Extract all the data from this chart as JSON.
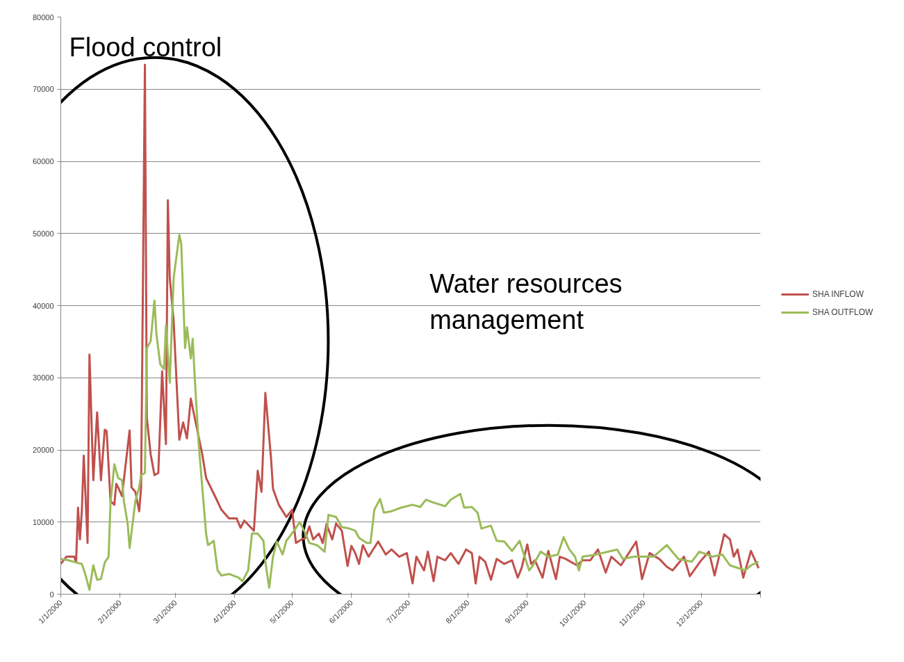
{
  "chart_data": {
    "type": "line",
    "xlim": [
      "2000-01-01",
      "2001-01-01"
    ],
    "xticks": [
      {
        "value": "2000-01-01",
        "label": "1/1/2000"
      },
      {
        "value": "2000-02-01",
        "label": "2/1/2000"
      },
      {
        "value": "2000-03-01",
        "label": "3/1/2000"
      },
      {
        "value": "2000-04-01",
        "label": "4/1/2000"
      },
      {
        "value": "2000-05-01",
        "label": "5/1/2000"
      },
      {
        "value": "2000-06-01",
        "label": "6/1/2000"
      },
      {
        "value": "2000-07-01",
        "label": "7/1/2000"
      },
      {
        "value": "2000-08-01",
        "label": "8/1/2000"
      },
      {
        "value": "2000-09-01",
        "label": "9/1/2000"
      },
      {
        "value": "2000-10-01",
        "label": "10/1/2000"
      },
      {
        "value": "2000-11-01",
        "label": "11/1/2000"
      },
      {
        "value": "2000-12-01",
        "label": "12/1/2000"
      },
      {
        "value": "2001-01-01",
        "label": null
      }
    ],
    "ylim": [
      0,
      80000
    ],
    "yticks": [
      0,
      10000,
      20000,
      30000,
      40000,
      50000,
      60000,
      70000,
      80000
    ],
    "grid": "y",
    "legend": "right",
    "annotations": [
      "Flood control",
      "Water resources\nmanagement"
    ],
    "series": [
      {
        "name": "SHA INFLOW",
        "color": "#c0504d",
        "x": [
          "2000-01-01",
          "2000-01-04",
          "2000-01-08",
          "2000-01-09",
          "2000-01-10",
          "2000-01-11",
          "2000-01-12",
          "2000-01-13",
          "2000-01-15",
          "2000-01-16",
          "2000-01-18",
          "2000-01-20",
          "2000-01-22",
          "2000-01-24",
          "2000-01-25",
          "2000-01-27",
          "2000-01-29",
          "2000-01-30",
          "2000-01-31",
          "2000-02-02",
          "2000-02-06",
          "2000-02-07",
          "2000-02-09",
          "2000-02-11",
          "2000-02-12",
          "2000-02-14",
          "2000-02-15",
          "2000-02-17",
          "2000-02-19",
          "2000-02-21",
          "2000-02-23",
          "2000-02-25",
          "2000-02-26",
          "2000-02-27",
          "2000-02-29",
          "2000-03-03",
          "2000-03-05",
          "2000-03-07",
          "2000-03-09",
          "2000-03-11",
          "2000-03-15",
          "2000-03-17",
          "2000-03-22",
          "2000-03-25",
          "2000-03-29",
          "2000-04-02",
          "2000-04-04",
          "2000-04-06",
          "2000-04-11",
          "2000-04-13",
          "2000-04-15",
          "2000-04-17",
          "2000-04-20",
          "2000-04-21",
          "2000-04-24",
          "2000-04-28",
          "2000-05-01",
          "2000-05-03",
          "2000-05-06",
          "2000-05-08",
          "2000-05-10",
          "2000-05-12",
          "2000-05-15",
          "2000-05-17",
          "2000-05-19",
          "2000-05-22",
          "2000-05-24",
          "2000-05-27",
          "2000-05-30",
          "2000-06-01",
          "2000-06-03",
          "2000-06-05",
          "2000-06-07",
          "2000-06-10",
          "2000-06-15",
          "2000-06-19",
          "2000-06-22",
          "2000-06-26",
          "2000-06-30",
          "2000-07-03",
          "2000-07-05",
          "2000-07-09",
          "2000-07-11",
          "2000-07-14",
          "2000-07-16",
          "2000-07-20",
          "2000-07-23",
          "2000-07-27",
          "2000-07-31",
          "2000-08-03",
          "2000-08-05",
          "2000-08-07",
          "2000-08-10",
          "2000-08-13",
          "2000-08-16",
          "2000-08-20",
          "2000-08-24",
          "2000-08-27",
          "2000-08-29",
          "2000-09-01",
          "2000-09-03",
          "2000-09-05",
          "2000-09-09",
          "2000-09-12",
          "2000-09-16",
          "2000-09-18",
          "2000-09-21",
          "2000-09-27",
          "2000-09-30",
          "2000-10-04",
          "2000-10-08",
          "2000-10-12",
          "2000-10-15",
          "2000-10-20",
          "2000-10-28",
          "2000-10-31",
          "2000-11-04",
          "2000-11-09",
          "2000-11-13",
          "2000-11-16",
          "2000-11-22",
          "2000-11-25",
          "2000-12-01",
          "2000-12-05",
          "2000-12-08",
          "2000-12-13",
          "2000-12-16",
          "2000-12-18",
          "2000-12-20",
          "2000-12-23",
          "2000-12-27",
          "2000-12-31"
        ],
        "values": [
          4200,
          5200,
          5200,
          4400,
          12000,
          7600,
          11500,
          19200,
          7100,
          33200,
          15800,
          25200,
          15800,
          22800,
          22600,
          12900,
          12400,
          15300,
          14800,
          13600,
          22700,
          14800,
          14200,
          11500,
          14800,
          73400,
          24500,
          19400,
          16500,
          16800,
          30900,
          20800,
          54600,
          43800,
          38000,
          21400,
          23800,
          21600,
          27100,
          24500,
          19400,
          16100,
          13400,
          11700,
          10500,
          10500,
          9200,
          10200,
          8800,
          17100,
          14200,
          27900,
          18700,
          14600,
          12400,
          10700,
          11700,
          7100,
          7600,
          7800,
          9400,
          7600,
          8400,
          7100,
          9700,
          7600,
          9800,
          8800,
          3900,
          6700,
          5700,
          4200,
          6800,
          5200,
          7300,
          5500,
          6200,
          5200,
          5700,
          1500,
          5200,
          3300,
          5900,
          1800,
          5200,
          4700,
          5700,
          4200,
          6200,
          5700,
          1500,
          5200,
          4500,
          2000,
          4900,
          4200,
          4700,
          2300,
          3600,
          6900,
          4200,
          4700,
          2300,
          6000,
          2100,
          5200,
          4900,
          4000,
          4700,
          4700,
          6200,
          3000,
          5200,
          4000,
          7300,
          2100,
          5700,
          4900,
          3800,
          3300,
          5200,
          2500,
          4700,
          5900,
          2600,
          8300,
          7600,
          5200,
          6200,
          2300,
          6000,
          3600
        ]
      },
      {
        "name": "SHA OUTFLOW",
        "color": "#9bbb59",
        "x": [
          "2000-01-01",
          "2000-01-05",
          "2000-01-09",
          "2000-01-12",
          "2000-01-14",
          "2000-01-16",
          "2000-01-18",
          "2000-01-20",
          "2000-01-22",
          "2000-01-24",
          "2000-01-26",
          "2000-01-27",
          "2000-01-29",
          "2000-01-31",
          "2000-02-02",
          "2000-02-03",
          "2000-02-05",
          "2000-02-06",
          "2000-02-09",
          "2000-02-11",
          "2000-02-12",
          "2000-02-14",
          "2000-02-15",
          "2000-02-17",
          "2000-02-19",
          "2000-02-20",
          "2000-02-22",
          "2000-02-24",
          "2000-02-25",
          "2000-02-27",
          "2000-02-29",
          "2000-03-03",
          "2000-03-04",
          "2000-03-06",
          "2000-03-07",
          "2000-03-09",
          "2000-03-10",
          "2000-03-11",
          "2000-03-13",
          "2000-03-15",
          "2000-03-17",
          "2000-03-18",
          "2000-03-21",
          "2000-03-23",
          "2000-03-25",
          "2000-03-29",
          "2000-04-03",
          "2000-04-05",
          "2000-04-08",
          "2000-04-10",
          "2000-04-13",
          "2000-04-16",
          "2000-04-17",
          "2000-04-19",
          "2000-04-21",
          "2000-04-23",
          "2000-04-26",
          "2000-04-28",
          "2000-05-02",
          "2000-05-05",
          "2000-05-08",
          "2000-05-10",
          "2000-05-14",
          "2000-05-18",
          "2000-05-20",
          "2000-05-24",
          "2000-05-27",
          "2000-05-31",
          "2000-06-03",
          "2000-06-05",
          "2000-06-09",
          "2000-06-11",
          "2000-06-13",
          "2000-06-16",
          "2000-06-18",
          "2000-06-22",
          "2000-06-27",
          "2000-07-03",
          "2000-07-07",
          "2000-07-10",
          "2000-07-14",
          "2000-07-20",
          "2000-07-23",
          "2000-07-28",
          "2000-07-30",
          "2000-08-03",
          "2000-08-06",
          "2000-08-08",
          "2000-08-13",
          "2000-08-16",
          "2000-08-20",
          "2000-08-24",
          "2000-08-28",
          "2000-08-30",
          "2000-09-02",
          "2000-09-04",
          "2000-09-08",
          "2000-09-12",
          "2000-09-17",
          "2000-09-20",
          "2000-09-23",
          "2000-09-26",
          "2000-09-28",
          "2000-09-30",
          "2000-10-07",
          "2000-10-18",
          "2000-10-21",
          "2000-10-27",
          "2000-10-31",
          "2000-11-06",
          "2000-11-13",
          "2000-11-19",
          "2000-11-26",
          "2000-11-30",
          "2000-12-07",
          "2000-12-12",
          "2000-12-16",
          "2000-12-24",
          "2000-12-27",
          "2000-12-31"
        ],
        "values": [
          4900,
          4700,
          4400,
          4200,
          2600,
          600,
          4000,
          2000,
          2100,
          4400,
          5200,
          12700,
          18000,
          16100,
          15800,
          12900,
          9700,
          6400,
          12900,
          14800,
          16500,
          16800,
          34100,
          35100,
          40700,
          36100,
          31900,
          31200,
          37300,
          29300,
          43800,
          49800,
          48600,
          34100,
          37000,
          32700,
          35400,
          30300,
          21300,
          14800,
          8400,
          6800,
          7400,
          3300,
          2600,
          2800,
          2300,
          1800,
          3300,
          8400,
          8400,
          7400,
          4500,
          900,
          5200,
          7300,
          5500,
          7400,
          8800,
          10000,
          8400,
          7100,
          6800,
          5900,
          11000,
          10700,
          9300,
          9100,
          8800,
          7800,
          7100,
          7100,
          11700,
          13200,
          11300,
          11500,
          12000,
          12400,
          12100,
          13100,
          12700,
          12200,
          13100,
          13900,
          12000,
          12100,
          11300,
          9100,
          9500,
          7400,
          7300,
          6000,
          7400,
          5700,
          3300,
          4000,
          5900,
          5200,
          5500,
          7900,
          6200,
          5200,
          3300,
          5200,
          5500,
          6200,
          4900,
          5200,
          5200,
          5200,
          6800,
          4900,
          4500,
          5900,
          5200,
          5500,
          4000,
          3300,
          4000,
          4500
        ]
      }
    ]
  }
}
